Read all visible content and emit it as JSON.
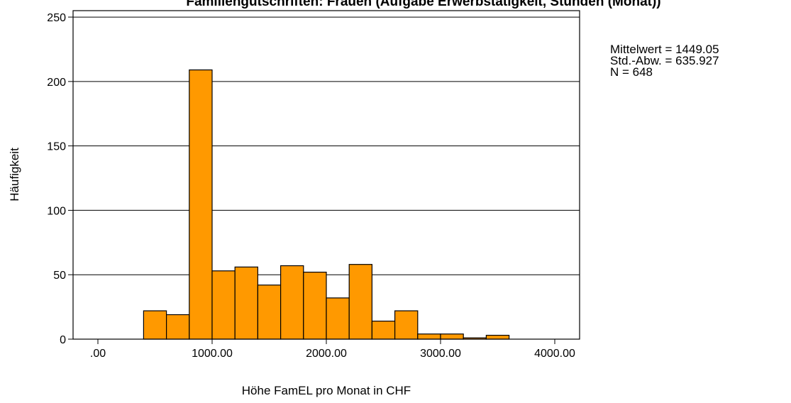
{
  "chart_data": {
    "type": "bar",
    "title": "Familiengutschriften: Frauen (Aufgabe Erwerbstätigkeit, Stunden (Monat))",
    "xlabel": "Höhe FamEL pro Monat in CHF",
    "ylabel": "Häufigkeit",
    "xlim": [
      0,
      4000
    ],
    "ylim": [
      0,
      255
    ],
    "bin_width": 200,
    "x_ticks": [
      {
        "value": 0,
        "label": ".00"
      },
      {
        "value": 1000,
        "label": "1000.00"
      },
      {
        "value": 2000,
        "label": "2000.00"
      },
      {
        "value": 3000,
        "label": "3000.00"
      },
      {
        "value": 4000,
        "label": "4000.00"
      }
    ],
    "y_ticks": [
      {
        "value": 0,
        "label": "0"
      },
      {
        "value": 50,
        "label": "50"
      },
      {
        "value": 100,
        "label": "100"
      },
      {
        "value": 150,
        "label": "150"
      },
      {
        "value": 200,
        "label": "200"
      },
      {
        "value": 250,
        "label": "250"
      }
    ],
    "bins": [
      {
        "start": 400,
        "end": 600,
        "count": 22
      },
      {
        "start": 600,
        "end": 800,
        "count": 19
      },
      {
        "start": 800,
        "end": 1000,
        "count": 209
      },
      {
        "start": 1000,
        "end": 1200,
        "count": 53
      },
      {
        "start": 1200,
        "end": 1400,
        "count": 56
      },
      {
        "start": 1400,
        "end": 1600,
        "count": 42
      },
      {
        "start": 1600,
        "end": 1800,
        "count": 57
      },
      {
        "start": 1800,
        "end": 2000,
        "count": 52
      },
      {
        "start": 2000,
        "end": 2200,
        "count": 32
      },
      {
        "start": 2200,
        "end": 2400,
        "count": 58
      },
      {
        "start": 2400,
        "end": 2600,
        "count": 14
      },
      {
        "start": 2600,
        "end": 2800,
        "count": 22
      },
      {
        "start": 2800,
        "end": 3000,
        "count": 4
      },
      {
        "start": 3000,
        "end": 3200,
        "count": 4
      },
      {
        "start": 3200,
        "end": 3400,
        "count": 1
      },
      {
        "start": 3400,
        "end": 3600,
        "count": 3
      }
    ],
    "grid": true,
    "bar_color": "#ff9900",
    "bar_edge_color": "#000000",
    "legend_position": "top-right"
  },
  "stats": {
    "mean_label": "Mittelwert = 1449.05",
    "sd_label": "Std.-Abw. = 635.927",
    "n_label": "N = 648"
  }
}
